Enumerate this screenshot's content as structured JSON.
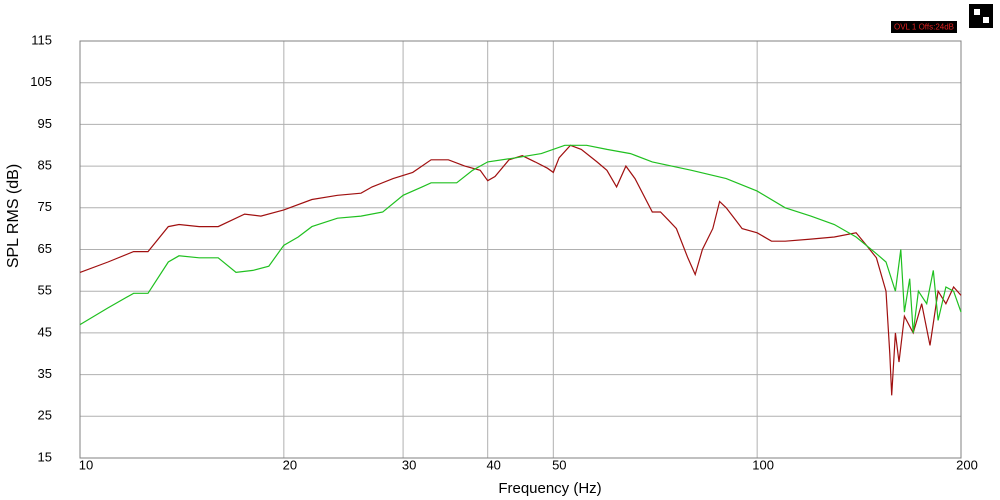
{
  "chart_data": {
    "type": "line",
    "y_label": "SPL RMS (dB)",
    "x_label": "Frequency (Hz)",
    "annotation": "OVL 1 Offs:24dB",
    "log_x": true,
    "grid": true,
    "xlim": [
      10,
      200
    ],
    "xticks": [
      10,
      20,
      30,
      40,
      50,
      100,
      200
    ],
    "ylim": [
      15,
      115
    ],
    "yticks": [
      15,
      25,
      35,
      45,
      55,
      65,
      75,
      85,
      95,
      105,
      115
    ],
    "series": [
      {
        "name": "Red",
        "color": "#a01010",
        "x": [
          10,
          11,
          12,
          12.6,
          13.5,
          14,
          15,
          16,
          17.5,
          18.5,
          20,
          22,
          24,
          26,
          27,
          29,
          31,
          33,
          35,
          37,
          39,
          40,
          41,
          43,
          45,
          47,
          49,
          50,
          51,
          53,
          55,
          58,
          60,
          62,
          64,
          66,
          70,
          72,
          74,
          76,
          79,
          81,
          83,
          86,
          88,
          90,
          93,
          95,
          100,
          105,
          110,
          120,
          130,
          140,
          145,
          150,
          155,
          157,
          158,
          160,
          162,
          165,
          170,
          175,
          180,
          185,
          190,
          195,
          200
        ],
        "values": [
          59.5,
          62,
          64.5,
          64.5,
          70.5,
          71,
          70.5,
          70.5,
          73.5,
          73,
          74.5,
          77,
          78,
          78.5,
          80,
          82,
          83.5,
          86.5,
          86.5,
          85,
          84,
          81.5,
          82.5,
          86.5,
          87.5,
          86,
          84.5,
          83.5,
          87,
          90,
          89,
          86,
          84,
          80,
          85,
          82,
          74,
          74,
          72,
          70,
          63,
          59,
          65,
          70,
          76.5,
          75,
          72,
          70,
          69,
          67,
          67,
          67.5,
          68,
          69,
          66,
          63,
          55,
          40,
          30,
          45,
          38,
          49,
          45,
          52,
          42,
          55,
          52,
          56,
          54
        ]
      },
      {
        "name": "Green",
        "color": "#20c020",
        "x": [
          10,
          11,
          12,
          12.6,
          13.5,
          14,
          15,
          16,
          17,
          18,
          19,
          20,
          21,
          22,
          24,
          26,
          28,
          30,
          32,
          33,
          36,
          38,
          40,
          44,
          48,
          52,
          56,
          60,
          65,
          70,
          80,
          90,
          100,
          110,
          120,
          130,
          140,
          150,
          155,
          160,
          163,
          165,
          168,
          170,
          173,
          178,
          182,
          185,
          190,
          195,
          200
        ],
        "values": [
          47,
          51,
          54.5,
          54.5,
          62,
          63.5,
          63,
          63,
          59.5,
          60,
          61,
          66,
          68,
          70.5,
          72.5,
          73,
          74,
          78,
          80,
          81,
          81,
          84,
          86,
          87,
          88,
          90,
          90,
          89,
          88,
          86,
          84,
          82,
          79,
          75,
          73,
          71,
          68,
          64,
          62,
          55,
          65,
          50,
          58,
          45,
          55,
          52,
          60,
          48,
          56,
          55,
          50
        ]
      }
    ]
  }
}
